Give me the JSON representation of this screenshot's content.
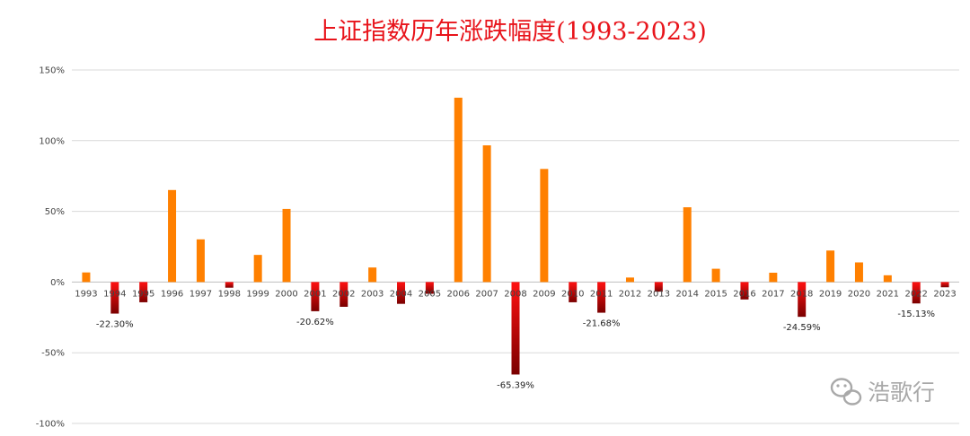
{
  "chart_data": {
    "type": "bar",
    "title": "上证指数历年涨跌幅度(1993-2023)",
    "xlabel": "",
    "ylabel": "",
    "ylim": [
      -100,
      150
    ],
    "yticks": [
      {
        "value": 150,
        "label": "150%"
      },
      {
        "value": 100,
        "label": "100%"
      },
      {
        "value": 50,
        "label": "50%"
      },
      {
        "value": 0,
        "label": "0%"
      },
      {
        "value": -50,
        "label": "-50%"
      },
      {
        "value": -100,
        "label": "-100%"
      }
    ],
    "grid": true,
    "legend": "none",
    "categories": [
      "1993",
      "1994",
      "1995",
      "1996",
      "1997",
      "1998",
      "1999",
      "2000",
      "2001",
      "2002",
      "2003",
      "2004",
      "2005",
      "2006",
      "2007",
      "2008",
      "2009",
      "2010",
      "2011",
      "2012",
      "2013",
      "2014",
      "2015",
      "2016",
      "2017",
      "2018",
      "2019",
      "2020",
      "2021",
      "2022",
      "2023"
    ],
    "values": [
      6.8,
      -22.3,
      -14.3,
      65.1,
      30.2,
      -4.0,
      19.2,
      51.7,
      -20.62,
      -17.5,
      10.3,
      -15.4,
      -8.3,
      130.4,
      96.7,
      -65.39,
      80.0,
      -14.3,
      -21.68,
      3.2,
      -6.8,
      52.9,
      9.4,
      -12.3,
      6.6,
      -24.59,
      22.3,
      13.9,
      4.8,
      -15.13,
      -3.7
    ],
    "data_labels": [
      {
        "category": "1994",
        "text": "-22.30%"
      },
      {
        "category": "2001",
        "text": "-20.62%"
      },
      {
        "category": "2008",
        "text": "-65.39%"
      },
      {
        "category": "2011",
        "text": "-21.68%"
      },
      {
        "category": "2018",
        "text": "-24.59%"
      },
      {
        "category": "2022",
        "text": "-15.13%"
      }
    ],
    "colors": {
      "positive": "#ff8000",
      "negative_top": "#ff1111",
      "negative_bottom": "#7a0000"
    }
  },
  "watermark": {
    "text": "浩歌行",
    "icon": "wechat-icon"
  }
}
